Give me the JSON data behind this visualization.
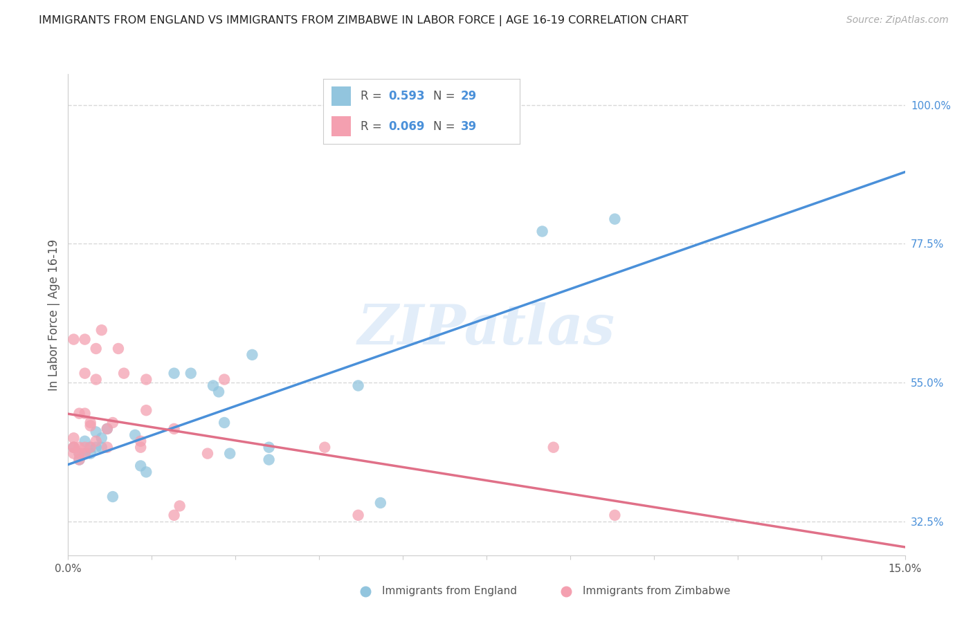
{
  "title": "IMMIGRANTS FROM ENGLAND VS IMMIGRANTS FROM ZIMBABWE IN LABOR FORCE | AGE 16-19 CORRELATION CHART",
  "source_text": "Source: ZipAtlas.com",
  "ylabel": "In Labor Force | Age 16-19",
  "xlim": [
    0.0,
    0.15
  ],
  "ylim": [
    0.27,
    1.05
  ],
  "ytick_values": [
    0.325,
    0.55,
    0.775,
    1.0
  ],
  "ytick_labels": [
    "32.5%",
    "55.0%",
    "77.5%",
    "100.0%"
  ],
  "england_color": "#92c5de",
  "zimbabwe_color": "#f4a0b0",
  "england_line_color": "#4a90d9",
  "zimbabwe_line_color": "#e07088",
  "england_R": "0.593",
  "england_N": "29",
  "zimbabwe_R": "0.069",
  "zimbabwe_N": "39",
  "watermark": "ZIPatlas",
  "background_color": "#ffffff",
  "grid_color": "#d8d8d8",
  "england_x": [
    0.001,
    0.002,
    0.002,
    0.003,
    0.003,
    0.004,
    0.004,
    0.005,
    0.005,
    0.006,
    0.006,
    0.007,
    0.008,
    0.012,
    0.013,
    0.014,
    0.019,
    0.022,
    0.026,
    0.027,
    0.028,
    0.029,
    0.033,
    0.036,
    0.036,
    0.052,
    0.056,
    0.085,
    0.098
  ],
  "england_y": [
    0.445,
    0.425,
    0.435,
    0.435,
    0.455,
    0.435,
    0.445,
    0.47,
    0.445,
    0.445,
    0.46,
    0.475,
    0.365,
    0.465,
    0.415,
    0.405,
    0.565,
    0.565,
    0.545,
    0.535,
    0.485,
    0.435,
    0.595,
    0.425,
    0.445,
    0.545,
    0.355,
    0.795,
    0.815
  ],
  "zimbabwe_x": [
    0.001,
    0.001,
    0.001,
    0.001,
    0.001,
    0.002,
    0.002,
    0.002,
    0.002,
    0.003,
    0.003,
    0.003,
    0.003,
    0.003,
    0.004,
    0.004,
    0.004,
    0.005,
    0.005,
    0.005,
    0.006,
    0.007,
    0.007,
    0.008,
    0.009,
    0.01,
    0.013,
    0.013,
    0.014,
    0.014,
    0.019,
    0.019,
    0.02,
    0.025,
    0.028,
    0.046,
    0.052,
    0.087,
    0.098
  ],
  "zimbabwe_y": [
    0.445,
    0.435,
    0.445,
    0.46,
    0.62,
    0.425,
    0.435,
    0.445,
    0.5,
    0.435,
    0.445,
    0.5,
    0.565,
    0.62,
    0.445,
    0.485,
    0.48,
    0.455,
    0.555,
    0.605,
    0.635,
    0.445,
    0.475,
    0.485,
    0.605,
    0.565,
    0.445,
    0.455,
    0.505,
    0.555,
    0.335,
    0.475,
    0.35,
    0.435,
    0.555,
    0.445,
    0.335,
    0.445,
    0.335
  ]
}
